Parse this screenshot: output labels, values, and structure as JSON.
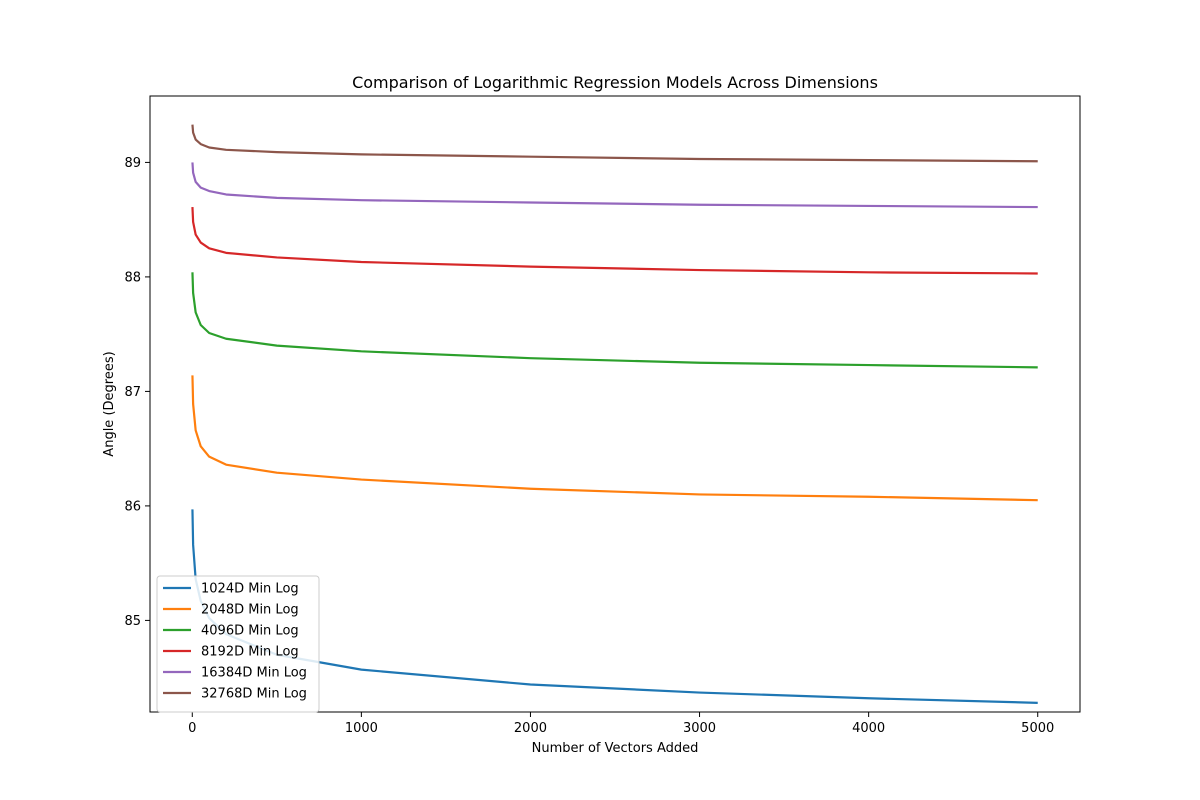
{
  "chart_data": {
    "type": "line",
    "title": "Comparison of Logarithmic Regression Models Across Dimensions",
    "xlabel": "Number of Vectors Added",
    "ylabel": "Angle (Degrees)",
    "xlim": [
      -250,
      5250
    ],
    "ylim": [
      84.2,
      89.58
    ],
    "x_ticks": [
      0,
      1000,
      2000,
      3000,
      4000,
      5000
    ],
    "y_ticks": [
      85,
      86,
      87,
      88,
      89
    ],
    "legend_position": "lower-left",
    "grid": false,
    "series": [
      {
        "name": "1024D Min Log",
        "color": "#1f77b4",
        "x": [
          1,
          5,
          20,
          50,
          100,
          200,
          500,
          1000,
          2000,
          3000,
          4000,
          5000
        ],
        "y": [
          85.97,
          85.66,
          85.36,
          85.17,
          85.02,
          84.88,
          84.7,
          84.57,
          84.44,
          84.37,
          84.32,
          84.28
        ]
      },
      {
        "name": "2048D Min Log",
        "color": "#ff7f0e",
        "x": [
          1,
          5,
          20,
          50,
          100,
          200,
          500,
          1000,
          2000,
          3000,
          4000,
          5000
        ],
        "y": [
          87.14,
          86.89,
          86.66,
          86.52,
          86.43,
          86.36,
          86.29,
          86.23,
          86.15,
          86.1,
          86.08,
          86.05
        ]
      },
      {
        "name": "4096D Min Log",
        "color": "#2ca02c",
        "x": [
          1,
          5,
          20,
          50,
          100,
          200,
          500,
          1000,
          2000,
          3000,
          4000,
          5000
        ],
        "y": [
          88.04,
          87.86,
          87.69,
          87.58,
          87.51,
          87.46,
          87.4,
          87.35,
          87.29,
          87.25,
          87.23,
          87.21
        ]
      },
      {
        "name": "8192D Min Log",
        "color": "#d62728",
        "x": [
          1,
          5,
          20,
          50,
          100,
          200,
          500,
          1000,
          2000,
          3000,
          4000,
          5000
        ],
        "y": [
          88.61,
          88.48,
          88.37,
          88.3,
          88.25,
          88.21,
          88.17,
          88.13,
          88.09,
          88.06,
          88.04,
          88.03
        ]
      },
      {
        "name": "16384D Min Log",
        "color": "#9467bd",
        "x": [
          1,
          5,
          20,
          50,
          100,
          200,
          500,
          1000,
          2000,
          3000,
          4000,
          5000
        ],
        "y": [
          89.0,
          88.91,
          88.83,
          88.78,
          88.75,
          88.72,
          88.69,
          88.67,
          88.65,
          88.63,
          88.62,
          88.61
        ]
      },
      {
        "name": "32768D Min Log",
        "color": "#8c564b",
        "x": [
          1,
          5,
          20,
          50,
          100,
          200,
          500,
          1000,
          2000,
          3000,
          4000,
          5000
        ],
        "y": [
          89.33,
          89.26,
          89.2,
          89.16,
          89.13,
          89.11,
          89.09,
          89.07,
          89.05,
          89.03,
          89.02,
          89.01
        ]
      }
    ]
  }
}
